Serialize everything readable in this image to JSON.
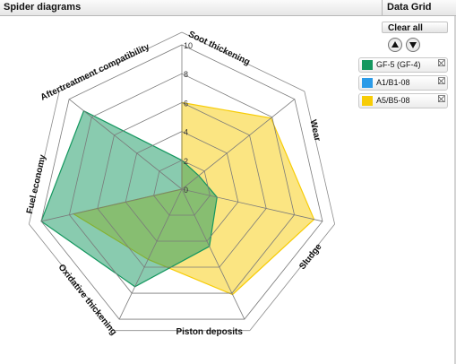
{
  "tabs": {
    "spider": "Spider diagrams",
    "grid": "Data Grid"
  },
  "panel": {
    "clear_all": "Clear all",
    "move_up": "move-up",
    "move_down": "move-down",
    "series": [
      {
        "label": "GF-5 (GF-4)",
        "color": "#14975f"
      },
      {
        "label": "A1/B1-08",
        "color": "#2b9be8"
      },
      {
        "label": "A5/B5-08",
        "color": "#f7cc06"
      }
    ]
  },
  "chart_data": {
    "type": "radar",
    "axes": [
      "Soot thickening",
      "Wear",
      "Sludge",
      "Piston deposits",
      "Oxidative thickening",
      "Fuel economy",
      "Aftertreatment compatibility"
    ],
    "ticks": [
      0,
      2,
      4,
      6,
      8,
      10
    ],
    "rmax": 10,
    "series": [
      {
        "name": "A5/B5-08",
        "color": "#f7cc06",
        "values": [
          6,
          7.9,
          9.4,
          8.1,
          5.4,
          7.7,
          0
        ]
      },
      {
        "name": "GF-5 (GF-4)",
        "color": "#14975f",
        "values": [
          2,
          1.5,
          2.5,
          4.4,
          7.5,
          10,
          8.7
        ]
      }
    ]
  }
}
